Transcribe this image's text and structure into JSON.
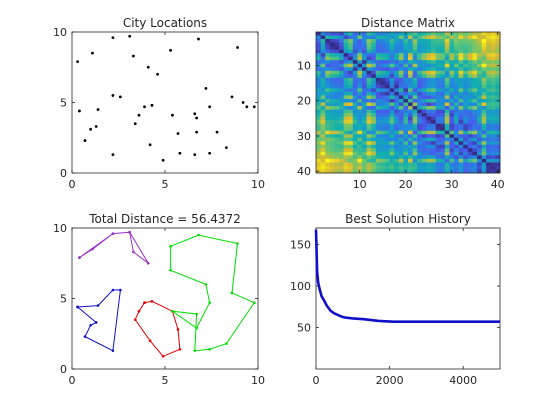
{
  "chart_data": [
    {
      "type": "scatter",
      "title": "City Locations",
      "xlim": [
        0,
        10
      ],
      "ylim": [
        0,
        10
      ],
      "xticks": [
        "0",
        "5",
        "10"
      ],
      "yticks": [
        "0",
        "5",
        "10"
      ],
      "marker_color": "#000000",
      "points": [
        [
          0.4,
          4.4
        ],
        [
          0.3,
          7.9
        ],
        [
          0.7,
          2.3
        ],
        [
          1.0,
          3.1
        ],
        [
          1.3,
          3.3
        ],
        [
          1.4,
          4.5
        ],
        [
          1.1,
          8.5
        ],
        [
          2.2,
          9.6
        ],
        [
          2.2,
          5.5
        ],
        [
          2.2,
          1.3
        ],
        [
          2.6,
          5.4
        ],
        [
          3.1,
          9.7
        ],
        [
          3.3,
          8.3
        ],
        [
          3.4,
          3.5
        ],
        [
          3.6,
          4.1
        ],
        [
          3.9,
          4.7
        ],
        [
          4.1,
          7.5
        ],
        [
          4.3,
          4.8
        ],
        [
          4.2,
          2.0
        ],
        [
          4.6,
          7.0
        ],
        [
          4.9,
          0.9
        ],
        [
          5.3,
          8.7
        ],
        [
          5.4,
          4.1
        ],
        [
          5.7,
          2.8
        ],
        [
          5.8,
          1.4
        ],
        [
          6.6,
          1.3
        ],
        [
          6.7,
          3.9
        ],
        [
          6.6,
          4.2
        ],
        [
          6.8,
          9.5
        ],
        [
          6.7,
          2.9
        ],
        [
          7.2,
          6.0
        ],
        [
          7.4,
          1.4
        ],
        [
          7.4,
          4.7
        ],
        [
          7.8,
          2.9
        ],
        [
          8.3,
          1.8
        ],
        [
          8.6,
          5.4
        ],
        [
          8.9,
          8.9
        ],
        [
          9.4,
          4.7
        ],
        [
          9.8,
          4.7
        ],
        [
          9.2,
          5.0
        ]
      ]
    },
    {
      "type": "heatmap",
      "title": "Distance Matrix",
      "size": 40,
      "xlim": [
        0.5,
        40.5
      ],
      "ylim": [
        0.5,
        40.5
      ],
      "xticks": [
        "10",
        "20",
        "30",
        "40"
      ],
      "yticks": [
        "10",
        "20",
        "30",
        "40"
      ],
      "colormap": "parula"
    },
    {
      "type": "line",
      "title": "Total Distance = 56.4372",
      "xlim": [
        0,
        10
      ],
      "ylim": [
        0,
        10
      ],
      "xticks": [
        "0",
        "5",
        "10"
      ],
      "yticks": [
        "0",
        "5",
        "10"
      ],
      "series": [
        {
          "color": "#9b30c8",
          "points": [
            [
              0.4,
              7.9
            ],
            [
              1.1,
              8.5
            ],
            [
              2.2,
              9.6
            ],
            [
              3.1,
              9.7
            ],
            [
              3.3,
              8.3
            ],
            [
              4.1,
              7.5
            ],
            [
              3.1,
              9.7
            ],
            [
              2.2,
              9.6
            ],
            [
              0.4,
              7.9
            ]
          ]
        },
        {
          "color": "#1010c8",
          "points": [
            [
              0.3,
              4.4
            ],
            [
              1.4,
              4.5
            ],
            [
              2.2,
              5.6
            ],
            [
              2.6,
              5.6
            ],
            [
              2.2,
              1.3
            ],
            [
              0.7,
              2.3
            ],
            [
              1.0,
              3.1
            ],
            [
              1.3,
              3.3
            ],
            [
              0.3,
              4.4
            ]
          ]
        },
        {
          "color": "#e00000",
          "points": [
            [
              3.9,
              4.7
            ],
            [
              4.3,
              4.8
            ],
            [
              5.4,
              4.1
            ],
            [
              5.7,
              2.8
            ],
            [
              5.8,
              1.4
            ],
            [
              4.9,
              0.9
            ],
            [
              4.2,
              2.0
            ],
            [
              3.4,
              3.5
            ],
            [
              3.6,
              4.1
            ],
            [
              3.9,
              4.7
            ]
          ]
        },
        {
          "color": "#00dd00",
          "points": [
            [
              5.3,
              8.7
            ],
            [
              6.8,
              9.5
            ],
            [
              8.9,
              8.9
            ],
            [
              8.6,
              5.4
            ],
            [
              9.8,
              4.7
            ],
            [
              8.3,
              1.8
            ],
            [
              7.4,
              1.4
            ],
            [
              6.6,
              1.3
            ],
            [
              6.7,
              3.9
            ],
            [
              5.4,
              4.1
            ],
            [
              6.7,
              2.9
            ],
            [
              7.4,
              4.7
            ],
            [
              7.2,
              6.0
            ],
            [
              5.3,
              7.0
            ],
            [
              5.3,
              8.7
            ]
          ]
        }
      ]
    },
    {
      "type": "line",
      "title": "Best Solution History",
      "xlim": [
        0,
        5000
      ],
      "ylim": [
        0,
        170
      ],
      "xticks": [
        "0",
        "2000",
        "4000"
      ],
      "yticks": [
        "50",
        "100",
        "150"
      ],
      "color": "#1010c8",
      "points": [
        [
          0,
          168
        ],
        [
          30,
          118
        ],
        [
          60,
          104
        ],
        [
          100,
          96
        ],
        [
          150,
          88
        ],
        [
          200,
          84
        ],
        [
          300,
          76
        ],
        [
          400,
          70
        ],
        [
          500,
          67
        ],
        [
          600,
          65
        ],
        [
          700,
          63
        ],
        [
          800,
          62
        ],
        [
          1000,
          61
        ],
        [
          1300,
          60
        ],
        [
          1500,
          59
        ],
        [
          1700,
          58
        ],
        [
          2100,
          57
        ],
        [
          2500,
          57
        ],
        [
          3000,
          57
        ],
        [
          4000,
          57
        ],
        [
          5000,
          57
        ]
      ]
    }
  ]
}
